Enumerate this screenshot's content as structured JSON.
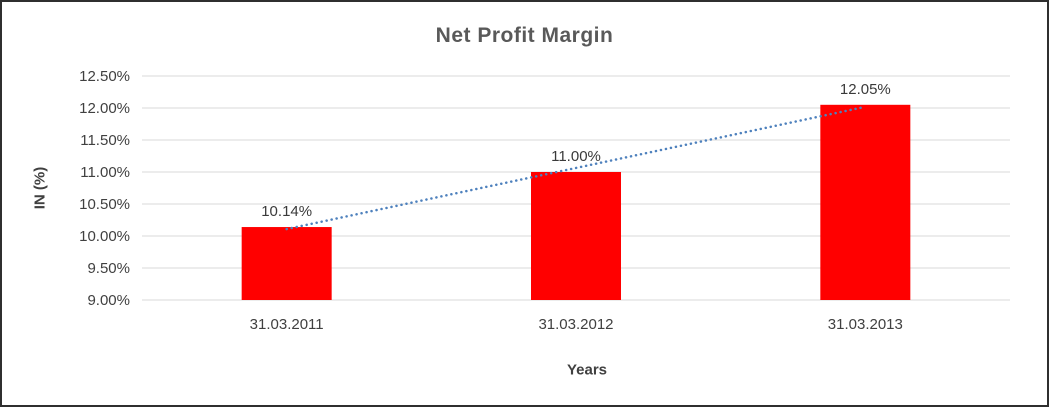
{
  "chart_data": {
    "type": "bar",
    "title": "Net Profit Margin",
    "categories": [
      "31.03.2011",
      "31.03.2012",
      "31.03.2013"
    ],
    "values": [
      10.14,
      11.0,
      12.05
    ],
    "data_labels": [
      "10.14%",
      "11.00%",
      "12.05%"
    ],
    "xlabel": "Years",
    "ylabel": "IN (%)",
    "ylim": [
      9.0,
      12.5
    ],
    "ytick_step": 0.5,
    "ytick_labels": [
      "9.00%",
      "9.50%",
      "10.00%",
      "10.50%",
      "11.00%",
      "11.50%",
      "12.00%",
      "12.50%"
    ],
    "bar_color": "#ff0000",
    "trendline": true,
    "trendline_color": "#4e81bd",
    "gridline_color": "#d9d9d9",
    "grid": true,
    "legend": "none"
  }
}
